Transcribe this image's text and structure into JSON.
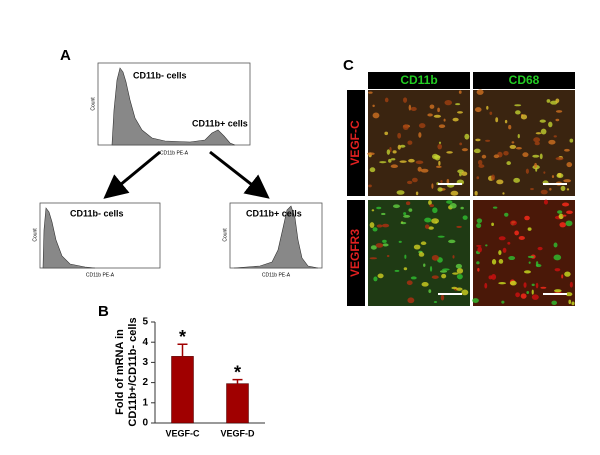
{
  "panels": {
    "a": {
      "label": "A",
      "top_gate_negative": "CD11b- cells",
      "top_gate_positive": "CD11b+ cells",
      "x_label": "CD11b PE-A",
      "y_label": "Count",
      "left_title": "CD11b- cells",
      "right_title": "CD11b+ cells"
    },
    "c": {
      "label": "C",
      "columns": [
        "CD11b",
        "CD68"
      ],
      "rows": [
        "VEGF-C",
        "VEGFR3"
      ]
    }
  },
  "chart_data": {
    "type": "bar",
    "panel_label": "B",
    "ylabel_lines": [
      "Fold of mRNA in",
      "CD11b+/CD11b- cells"
    ],
    "categories": [
      "VEGF-C",
      "VEGF-D"
    ],
    "values": [
      3.3,
      1.95
    ],
    "errors": [
      0.6,
      0.2
    ],
    "significance": [
      "*",
      "*"
    ],
    "color": "#a00000",
    "ylim": [
      0,
      5
    ],
    "yticks": [
      0,
      1,
      2,
      3,
      4,
      5
    ]
  }
}
